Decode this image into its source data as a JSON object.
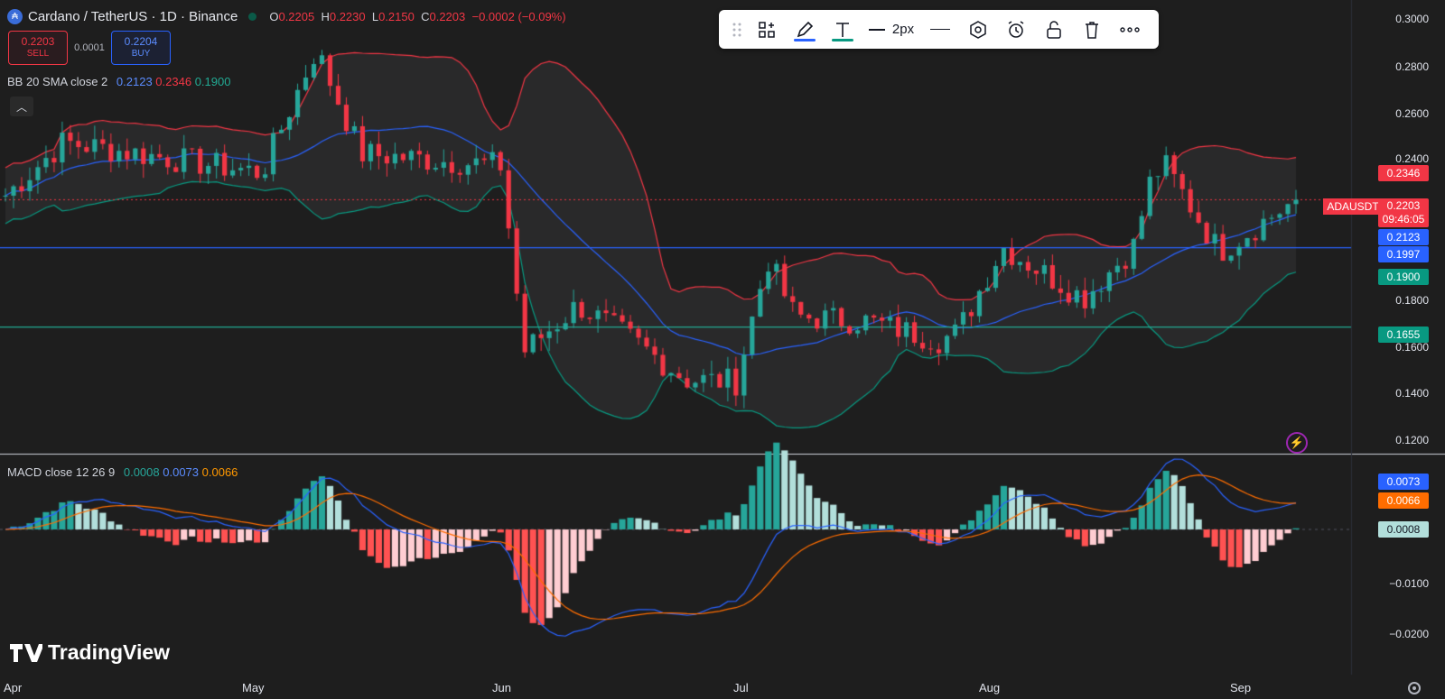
{
  "header": {
    "symbol_icon": "cardano-logo-icon",
    "title": "Cardano / TetherUS · 1D · Binance",
    "ohlc": {
      "o_label": "O",
      "o": "0.2205",
      "h_label": "H",
      "h": "0.2230",
      "l_label": "L",
      "l": "0.2150",
      "c_label": "C",
      "c": "0.2203",
      "change": "−0.0002 (−0.09%)"
    }
  },
  "trade": {
    "sell_price": "0.2203",
    "sell_label": "SELL",
    "spread": "0.0001",
    "buy_price": "0.2204",
    "buy_label": "BUY"
  },
  "bb": {
    "name": "BB 20 SMA close 2",
    "basis": "0.2123",
    "upper": "0.2346",
    "lower": "0.1900"
  },
  "macd": {
    "name": "MACD close 12 26 9",
    "hist": "0.0008",
    "macd": "0.0073",
    "signal": "0.0066"
  },
  "toolbar": {
    "width_label": "2px"
  },
  "price_labels": {
    "upper": "0.2346",
    "symbol": "ADAUSDT",
    "last": "0.2203",
    "countdown": "09:46:05",
    "basis": "0.2123",
    "hline_blue": "0.1997",
    "lower": "0.1900",
    "hline_green": "0.1655",
    "macd": "0.0073",
    "signal": "0.0066",
    "hist": "0.0008"
  },
  "axis": {
    "price_ticks": [
      "0.3000",
      "0.2800",
      "0.2600",
      "0.2400",
      "0.1800",
      "0.1600",
      "0.1400",
      "0.1200"
    ],
    "macd_ticks": [
      "−0.0100",
      "−0.0200"
    ],
    "months": [
      "Apr",
      "May",
      "Jun",
      "Jul",
      "Aug",
      "Sep"
    ]
  },
  "brand": "TradingView",
  "colors": {
    "up": "#26a69a",
    "down": "#f23645",
    "bb_basis": "#2962ff",
    "bb_upper": "#f23645",
    "bb_lower": "#089981",
    "macd": "#2962ff",
    "signal": "#ff6d00",
    "hline_blue": "#2962ff",
    "hline_green": "#22ab94"
  },
  "chart_data": {
    "type": "candlestick",
    "symbol": "ADAUSDT",
    "timeframe": "1D",
    "x_range": [
      "Apr",
      "Sep"
    ],
    "y_range": [
      0.12,
      0.3
    ],
    "close_path": [
      [
        "Apr",
        0.22
      ],
      [
        "Apr",
        0.245
      ],
      [
        "May",
        0.232
      ],
      [
        "May",
        0.285
      ],
      [
        "May",
        0.24
      ],
      [
        "Jun",
        0.235
      ],
      [
        "Jun",
        0.155
      ],
      [
        "Jun",
        0.175
      ],
      [
        "Jun",
        0.16
      ],
      [
        "Jun",
        0.143
      ],
      [
        "Jul",
        0.142
      ],
      [
        "Jul",
        0.195
      ],
      [
        "Jul",
        0.17
      ],
      [
        "Jul",
        0.168
      ],
      [
        "Jul",
        0.16
      ],
      [
        "Aug",
        0.163
      ],
      [
        "Aug",
        0.2
      ],
      [
        "Aug",
        0.178
      ],
      [
        "Aug",
        0.2
      ],
      [
        "Aug",
        0.23
      ],
      [
        "Aug",
        0.235
      ],
      [
        "Sep",
        0.198
      ],
      [
        "Sep",
        0.2203
      ]
    ],
    "bollinger": {
      "period": 20,
      "stddev": 2,
      "basis": 0.2123,
      "upper": 0.2346,
      "lower": 0.19
    },
    "horizontal_lines": [
      0.1997,
      0.1655
    ],
    "macd_panel": {
      "macd": 0.0073,
      "signal": 0.0066,
      "histogram": 0.0008,
      "y_range": [
        -0.025,
        0.012
      ]
    }
  }
}
